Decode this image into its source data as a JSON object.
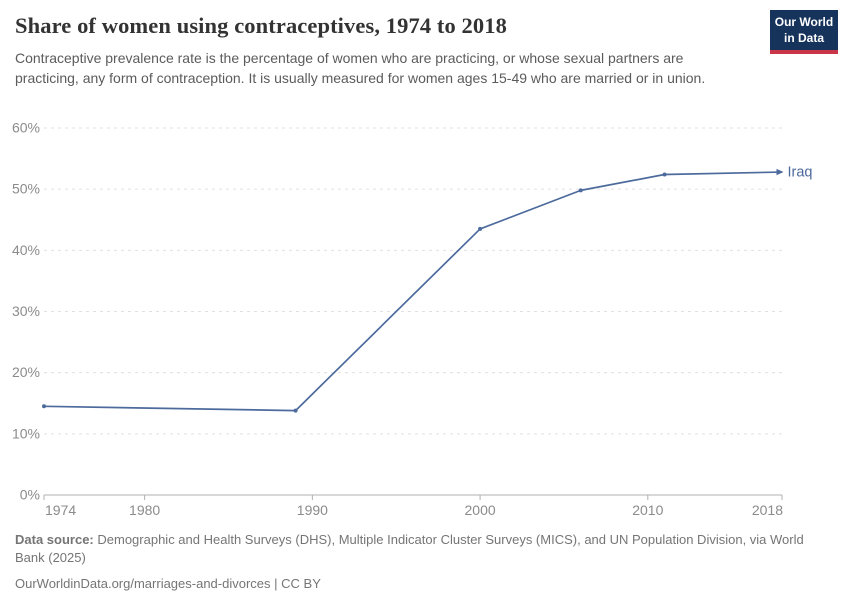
{
  "header": {
    "title": "Share of women using contraceptives, 1974 to 2018",
    "subtitle": "Contraceptive prevalence rate is the percentage of women who are practicing, or whose sexual partners are practicing, any form of contraception. It is usually measured for women ages 15-49 who are married or in union.",
    "logo": {
      "line1": "Our World",
      "line2": "in Data"
    }
  },
  "chart_data": {
    "type": "line",
    "title": "Share of women using contraceptives, 1974 to 2018",
    "series": [
      {
        "name": "Iraq",
        "x": [
          1974,
          1989,
          2000,
          2006,
          2011,
          2018
        ],
        "values": [
          14.5,
          13.8,
          43.5,
          49.8,
          52.4,
          52.8
        ]
      }
    ],
    "unit": "%",
    "xlabel": "",
    "ylabel": "",
    "xlim": [
      1974,
      2018
    ],
    "ylim": [
      0,
      60
    ],
    "y_ticks": [
      0,
      10,
      20,
      30,
      40,
      50,
      60
    ],
    "y_tick_suffix": "%",
    "x_ticks": [
      1974,
      1980,
      1990,
      2000,
      2010,
      2018
    ],
    "grid": "horizontal-dashed",
    "legend_position": "end-of-line-label",
    "entity_label": "Iraq"
  },
  "colors": {
    "line": "#4c6a9c",
    "title_text": "#333333",
    "subtitle_text": "#5b5b5b",
    "axis_text": "#8b8b8b",
    "gridline": "#e0e0e0",
    "axis_line": "#b0b0b0",
    "footer_text": "#757575",
    "logo_bg": "#15335B",
    "logo_red": "#cb3548"
  },
  "footer": {
    "source_label": "Data source:",
    "source_text": "Demographic and Health Surveys (DHS), Multiple Indicator Cluster Surveys (MICS), and UN Population Division, via World Bank (2025)",
    "link": "OurWorldinData.org/marriages-and-divorces",
    "separator": "|",
    "license": "CC BY"
  }
}
